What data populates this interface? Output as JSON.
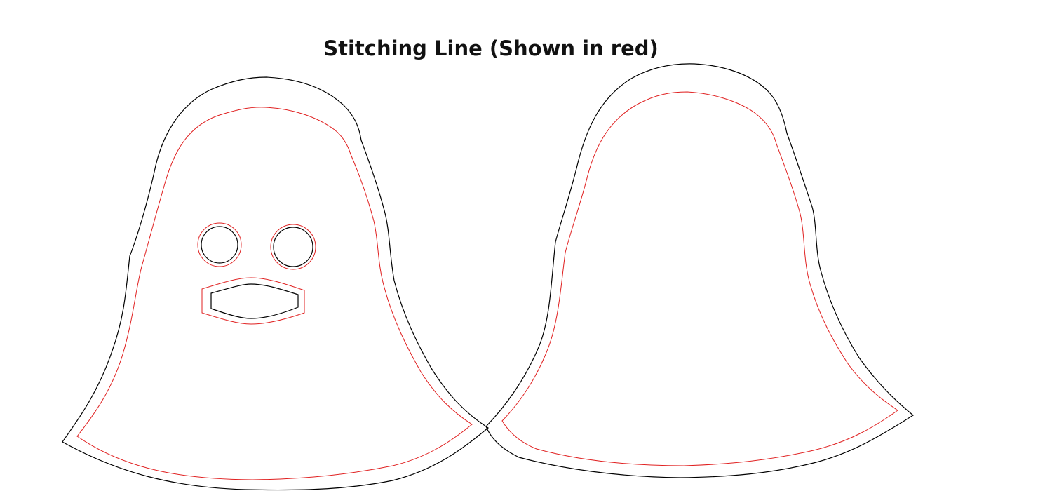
{
  "diagram": {
    "title": "Stitching Line (Shown in red)",
    "colors": {
      "cut_line": "#000000",
      "stitch_line": "#e02020",
      "background": "#ffffff"
    },
    "pieces": [
      {
        "id": "front",
        "features": [
          "left-eye",
          "right-eye",
          "mouth"
        ]
      },
      {
        "id": "back",
        "features": []
      }
    ]
  }
}
